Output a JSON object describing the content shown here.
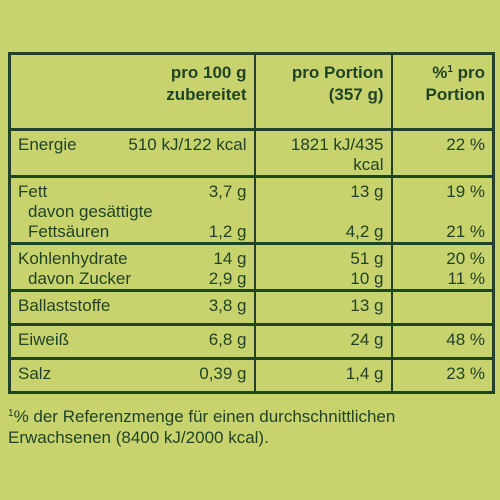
{
  "header": {
    "col_per100_line1": "pro 100 g",
    "col_per100_line2": "zubereitet",
    "col_portion_line1": "pro Portion",
    "col_portion_line2": "(357 g)",
    "col_pct_sup": "1",
    "col_pct_line1_rest": " pro",
    "col_pct_line2": "Portion"
  },
  "rows": {
    "energie": {
      "label": "Energie",
      "per100": "510 kJ/122 kcal",
      "portion": "1821 kJ/435 kcal",
      "pct": "22 %"
    },
    "fett": {
      "label": "Fett",
      "per100": "3,7 g",
      "portion": "13 g",
      "pct": "19 %"
    },
    "fett_ges_line1": "davon gesättigte",
    "fett_ges": {
      "label": "Fettsäuren",
      "per100": "1,2 g",
      "portion": "4,2 g",
      "pct": "21 %"
    },
    "kh": {
      "label": "Kohlenhydrate",
      "per100": "14 g",
      "portion": "51 g",
      "pct": "20 %"
    },
    "zucker": {
      "label": "davon Zucker",
      "per100": "2,9 g",
      "portion": "10 g",
      "pct": "11 %"
    },
    "ballast": {
      "label": "Ballaststoffe",
      "per100": "3,8 g",
      "portion": "13 g",
      "pct": ""
    },
    "eiweiss": {
      "label": "Eiweiß",
      "per100": "6,8 g",
      "portion": "24 g",
      "pct": "48 %"
    },
    "salz": {
      "label": "Salz",
      "per100": "0,39 g",
      "portion": "1,4 g",
      "pct": "23 %"
    }
  },
  "footnote": {
    "sup": "1",
    "line1": "% der Referenzmenge für einen durchschnittlichen",
    "line2": "Erwachsenen (8400 kJ/2000 kcal)."
  }
}
